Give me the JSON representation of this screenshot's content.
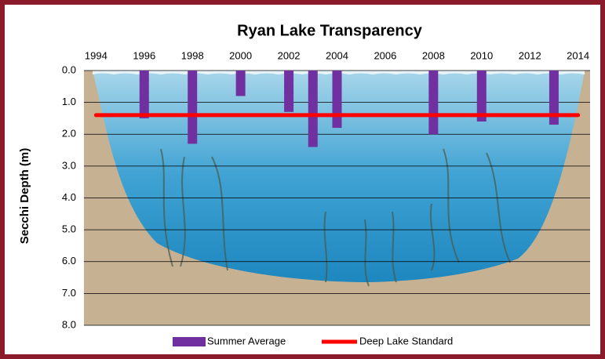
{
  "chart_data": {
    "type": "bar",
    "title": "Ryan Lake Transparency",
    "y_label": "Secchi Depth (m)",
    "x": [
      1996,
      1998,
      2000,
      2002,
      2003,
      2004,
      2008,
      2010,
      2013
    ],
    "series": [
      {
        "name": "Summer Average",
        "color": "#7030a0",
        "values": [
          1.5,
          2.3,
          0.8,
          1.3,
          2.4,
          1.8,
          2.0,
          1.6,
          1.7
        ]
      }
    ],
    "standard": {
      "name": "Deep Lake Standard",
      "color": "#ff0000",
      "value": 1.4,
      "x": [
        1994,
        2014
      ]
    },
    "xlim": [
      1993.5,
      2014.5
    ],
    "xticks": [
      1994,
      1996,
      1998,
      2000,
      2002,
      2004,
      2006,
      2008,
      2010,
      2012,
      2014
    ],
    "ylim": [
      0,
      8
    ],
    "y_inverted": true,
    "yticks": [
      {
        "value": 0,
        "label": "0.0"
      },
      {
        "value": 1,
        "label": "1.0"
      },
      {
        "value": 2,
        "label": "2.0"
      },
      {
        "value": 3,
        "label": "3.0"
      },
      {
        "value": 4,
        "label": "4.0"
      },
      {
        "value": 5,
        "label": "5.0"
      },
      {
        "value": 6,
        "label": "6.0"
      },
      {
        "value": 7,
        "label": "7.0"
      },
      {
        "value": 8,
        "label": "8.0"
      }
    ],
    "grid": true,
    "legend": "bottom"
  }
}
